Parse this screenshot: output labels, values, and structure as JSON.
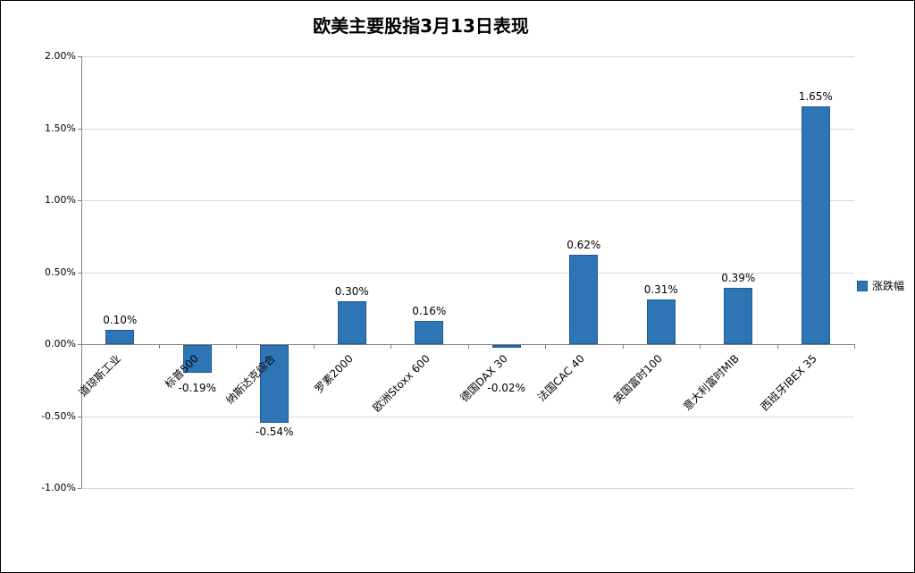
{
  "chart_data": {
    "type": "bar",
    "title": "欧美主要股指3月13日表现",
    "categories": [
      "道琼斯工业",
      "标普500",
      "纳斯达克综合",
      "罗素2000",
      "欧洲Stoxx 600",
      "德国DAX 30",
      "法国CAC 40",
      "英国富时100",
      "意大利富时MIB",
      "西班牙IBEX 35"
    ],
    "values": [
      0.1,
      -0.19,
      -0.54,
      0.3,
      0.16,
      -0.02,
      0.62,
      0.31,
      0.39,
      1.65
    ],
    "value_labels": [
      "0.10%",
      "-0.19%",
      "-0.54%",
      "0.30%",
      "0.16%",
      "-0.02%",
      "0.62%",
      "0.31%",
      "0.39%",
      "1.65%"
    ],
    "series": [
      {
        "name": "涨跌幅",
        "values": [
          0.1,
          -0.19,
          -0.54,
          0.3,
          0.16,
          -0.02,
          0.62,
          0.31,
          0.39,
          1.65
        ]
      }
    ],
    "legend_label": "涨跌幅",
    "legend_position": "right",
    "grid": true,
    "ylim": [
      -1.0,
      2.0
    ],
    "ytick_values": [
      2.0,
      1.5,
      1.0,
      0.5,
      0.0,
      -0.5,
      -1.0
    ],
    "ytick_labels": [
      "2.00%",
      "1.50%",
      "1.00%",
      "0.50%",
      "0.00%",
      "-0.50%",
      "-1.00%"
    ],
    "xlabel": "",
    "ylabel": "",
    "bar_color": "#2E75B6",
    "bar_border_color": "#1F5A96",
    "gridline_color": "#d9d9d9",
    "axis_color": "#808080"
  }
}
